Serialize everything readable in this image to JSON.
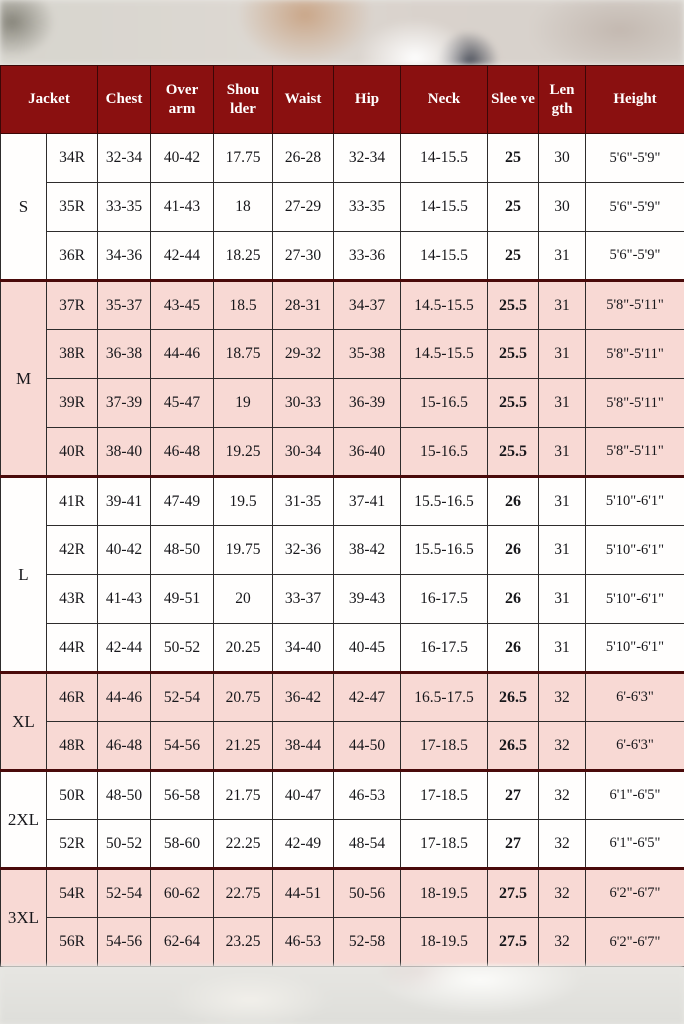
{
  "colors": {
    "header_bg": "#8a1010",
    "row_pink": "#f8d9d4",
    "row_white": "#fffefd",
    "separator": "#4a0a0a",
    "header_text": "#ffffff",
    "cell_text": "#17171b"
  },
  "table": {
    "columns": [
      {
        "key": "jacket",
        "label": "Jacket",
        "span": 2
      },
      {
        "key": "chest",
        "label": "Chest"
      },
      {
        "key": "overarm",
        "label": "Over arm"
      },
      {
        "key": "shoulder",
        "label": "Shou lder"
      },
      {
        "key": "waist",
        "label": "Waist"
      },
      {
        "key": "hip",
        "label": "Hip"
      },
      {
        "key": "neck",
        "label": "Neck"
      },
      {
        "key": "sleeve",
        "label": "Slee ve"
      },
      {
        "key": "length",
        "label": "Len gth"
      },
      {
        "key": "height",
        "label": "Height"
      }
    ],
    "groups": [
      {
        "label": "S",
        "shade": "white",
        "rows": [
          {
            "size": "34R",
            "chest": "32-34",
            "overarm": "40-42",
            "shoulder": "17.75",
            "waist": "26-28",
            "hip": "32-34",
            "neck": "14-15.5",
            "sleeve": "25",
            "length": "30",
            "height": "5'6\"-5'9\""
          },
          {
            "size": "35R",
            "chest": "33-35",
            "overarm": "41-43",
            "shoulder": "18",
            "waist": "27-29",
            "hip": "33-35",
            "neck": "14-15.5",
            "sleeve": "25",
            "length": "30",
            "height": "5'6\"-5'9\""
          },
          {
            "size": "36R",
            "chest": "34-36",
            "overarm": "42-44",
            "shoulder": "18.25",
            "waist": "27-30",
            "hip": "33-36",
            "neck": "14-15.5",
            "sleeve": "25",
            "length": "31",
            "height": "5'6\"-5'9\""
          }
        ]
      },
      {
        "label": "M",
        "shade": "pink",
        "rows": [
          {
            "size": "37R",
            "chest": "35-37",
            "overarm": "43-45",
            "shoulder": "18.5",
            "waist": "28-31",
            "hip": "34-37",
            "neck": "14.5-15.5",
            "sleeve": "25.5",
            "length": "31",
            "height": "5'8\"-5'11\""
          },
          {
            "size": "38R",
            "chest": "36-38",
            "overarm": "44-46",
            "shoulder": "18.75",
            "waist": "29-32",
            "hip": "35-38",
            "neck": "14.5-15.5",
            "sleeve": "25.5",
            "length": "31",
            "height": "5'8\"-5'11\""
          },
          {
            "size": "39R",
            "chest": "37-39",
            "overarm": "45-47",
            "shoulder": "19",
            "waist": "30-33",
            "hip": "36-39",
            "neck": "15-16.5",
            "sleeve": "25.5",
            "length": "31",
            "height": "5'8\"-5'11\""
          },
          {
            "size": "40R",
            "chest": "38-40",
            "overarm": "46-48",
            "shoulder": "19.25",
            "waist": "30-34",
            "hip": "36-40",
            "neck": "15-16.5",
            "sleeve": "25.5",
            "length": "31",
            "height": "5'8\"-5'11\""
          }
        ]
      },
      {
        "label": "L",
        "shade": "white",
        "rows": [
          {
            "size": "41R",
            "chest": "39-41",
            "overarm": "47-49",
            "shoulder": "19.5",
            "waist": "31-35",
            "hip": "37-41",
            "neck": "15.5-16.5",
            "sleeve": "26",
            "length": "31",
            "height": "5'10\"-6'1\""
          },
          {
            "size": "42R",
            "chest": "40-42",
            "overarm": "48-50",
            "shoulder": "19.75",
            "waist": "32-36",
            "hip": "38-42",
            "neck": "15.5-16.5",
            "sleeve": "26",
            "length": "31",
            "height": "5'10\"-6'1\""
          },
          {
            "size": "43R",
            "chest": "41-43",
            "overarm": "49-51",
            "shoulder": "20",
            "waist": "33-37",
            "hip": "39-43",
            "neck": "16-17.5",
            "sleeve": "26",
            "length": "31",
            "height": "5'10\"-6'1\""
          },
          {
            "size": "44R",
            "chest": "42-44",
            "overarm": "50-52",
            "shoulder": "20.25",
            "waist": "34-40",
            "hip": "40-45",
            "neck": "16-17.5",
            "sleeve": "26",
            "length": "31",
            "height": "5'10\"-6'1\""
          }
        ]
      },
      {
        "label": "XL",
        "shade": "pink",
        "rows": [
          {
            "size": "46R",
            "chest": "44-46",
            "overarm": "52-54",
            "shoulder": "20.75",
            "waist": "36-42",
            "hip": "42-47",
            "neck": "16.5-17.5",
            "sleeve": "26.5",
            "length": "32",
            "height": "6'-6'3\""
          },
          {
            "size": "48R",
            "chest": "46-48",
            "overarm": "54-56",
            "shoulder": "21.25",
            "waist": "38-44",
            "hip": "44-50",
            "neck": "17-18.5",
            "sleeve": "26.5",
            "length": "32",
            "height": "6'-6'3\""
          }
        ]
      },
      {
        "label": "2XL",
        "shade": "white",
        "rows": [
          {
            "size": "50R",
            "chest": "48-50",
            "overarm": "56-58",
            "shoulder": "21.75",
            "waist": "40-47",
            "hip": "46-53",
            "neck": "17-18.5",
            "sleeve": "27",
            "length": "32",
            "height": "6'1\"-6'5\""
          },
          {
            "size": "52R",
            "chest": "50-52",
            "overarm": "58-60",
            "shoulder": "22.25",
            "waist": "42-49",
            "hip": "48-54",
            "neck": "17-18.5",
            "sleeve": "27",
            "length": "32",
            "height": "6'1\"-6'5\""
          }
        ]
      },
      {
        "label": "3XL",
        "shade": "pink",
        "rows": [
          {
            "size": "54R",
            "chest": "52-54",
            "overarm": "60-62",
            "shoulder": "22.75",
            "waist": "44-51",
            "hip": "50-56",
            "neck": "18-19.5",
            "sleeve": "27.5",
            "length": "32",
            "height": "6'2\"-6'7\""
          },
          {
            "size": "56R",
            "chest": "54-56",
            "overarm": "62-64",
            "shoulder": "23.25",
            "waist": "46-53",
            "hip": "52-58",
            "neck": "18-19.5",
            "sleeve": "27.5",
            "length": "32",
            "height": "6'2\"-6'7\""
          }
        ]
      }
    ]
  }
}
